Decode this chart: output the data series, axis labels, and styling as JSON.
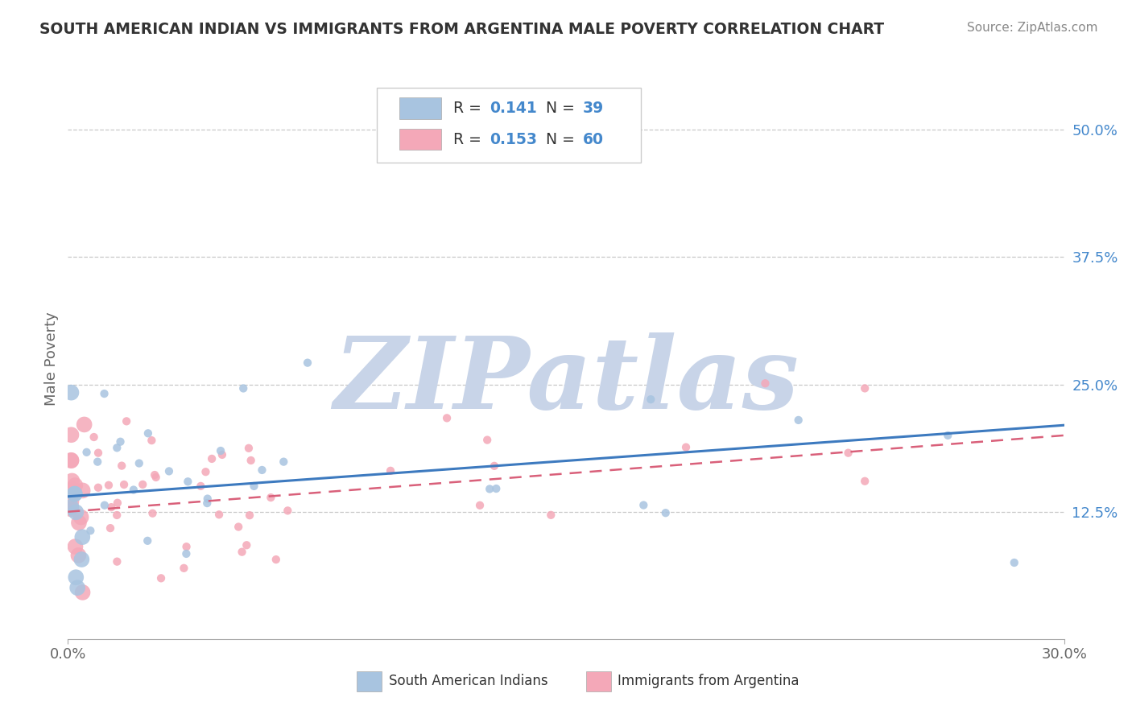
{
  "title": "SOUTH AMERICAN INDIAN VS IMMIGRANTS FROM ARGENTINA MALE POVERTY CORRELATION CHART",
  "source": "Source: ZipAtlas.com",
  "ylabel": "Male Poverty",
  "xlim": [
    0.0,
    0.3
  ],
  "ylim": [
    0.0,
    0.55
  ],
  "ytick_positions": [
    0.125,
    0.25,
    0.375,
    0.5
  ],
  "ytick_labels": [
    "12.5%",
    "25.0%",
    "37.5%",
    "50.0%"
  ],
  "series1_color": "#a8c4e0",
  "series2_color": "#f4a8b8",
  "line1_color": "#3d7abf",
  "line2_color": "#d9607a",
  "watermark": "ZIPatlas",
  "watermark_color": "#c8d4e8",
  "background_color": "#ffffff",
  "grid_color": "#c8c8c8",
  "R1": 0.141,
  "N1": 39,
  "R2": 0.153,
  "N2": 60,
  "blue_text_color": "#4488cc",
  "legend_box_color": "#eeeeee",
  "title_color": "#333333",
  "source_color": "#888888",
  "axis_label_color": "#666666",
  "ytick_color": "#4488cc"
}
